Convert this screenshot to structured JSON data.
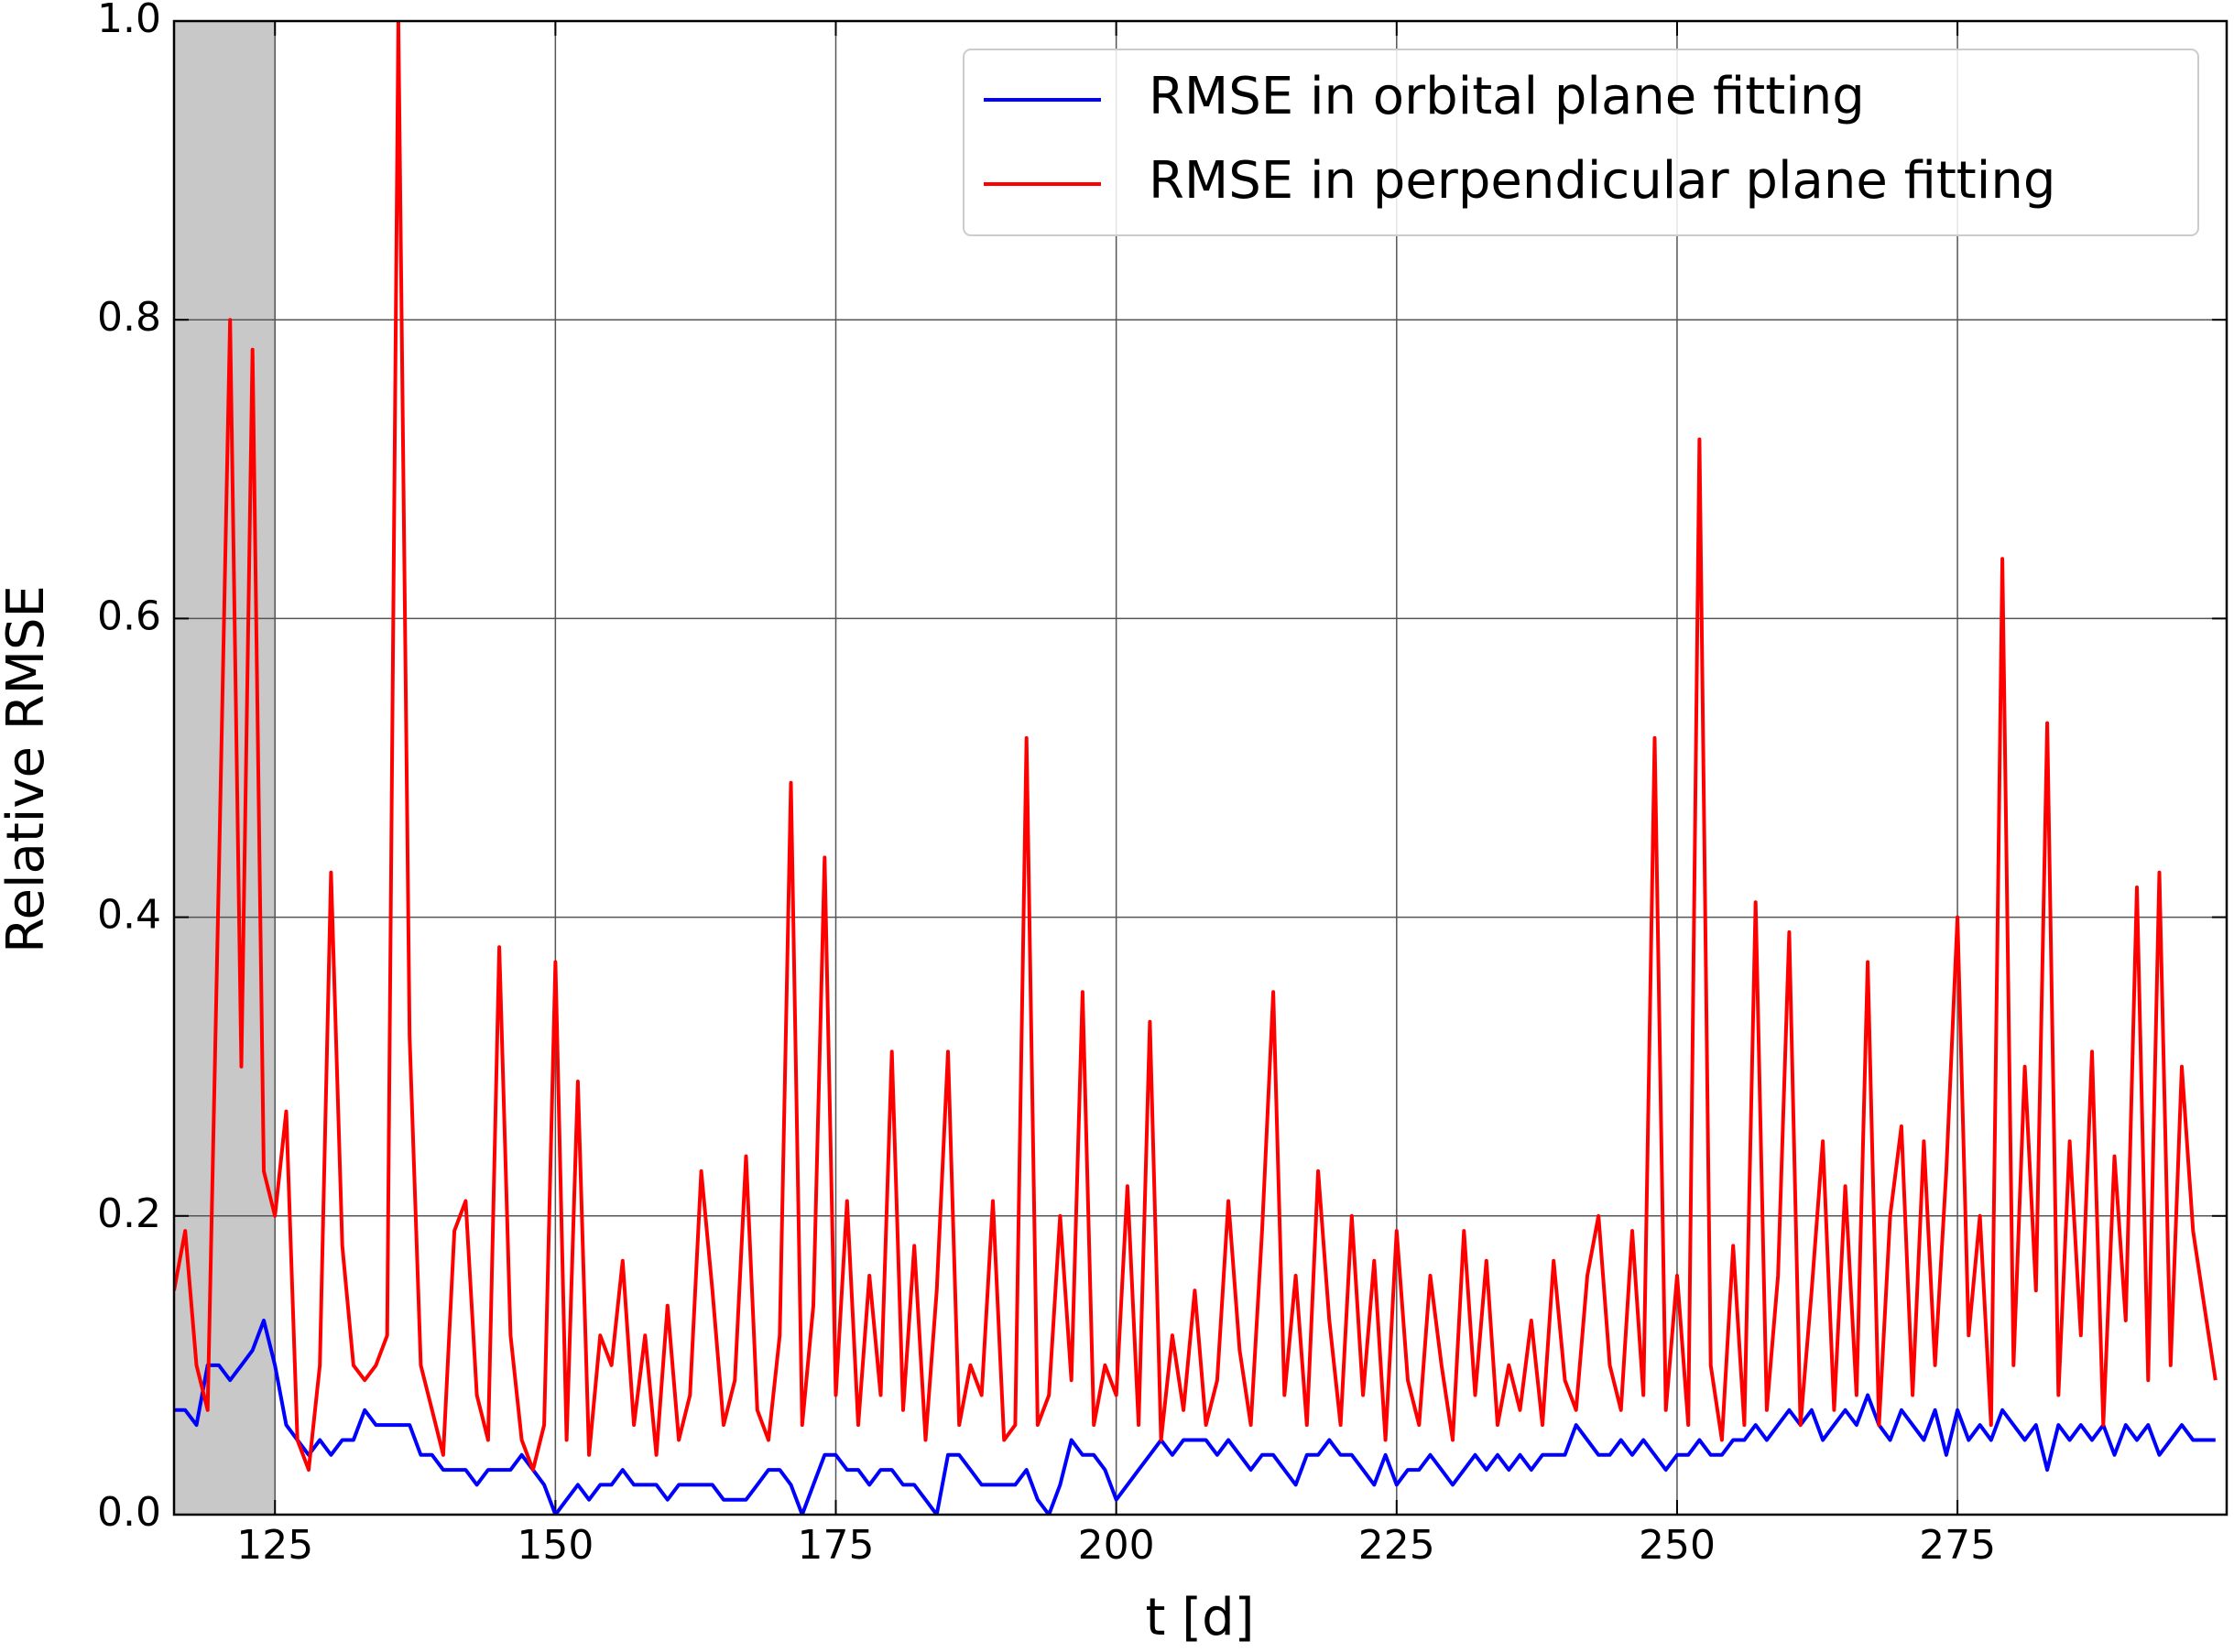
{
  "chart_data": {
    "type": "line",
    "xlabel": "t [d]",
    "ylabel": "Relative RMSE",
    "x": [
      116,
      117,
      118,
      119,
      120,
      121,
      122,
      123,
      124,
      125,
      126,
      127,
      128,
      129,
      130,
      131,
      132,
      133,
      134,
      135,
      136,
      137,
      138,
      139,
      140,
      141,
      142,
      143,
      144,
      145,
      146,
      147,
      148,
      149,
      150,
      151,
      152,
      153,
      154,
      155,
      156,
      157,
      158,
      159,
      160,
      161,
      162,
      163,
      164,
      165,
      166,
      167,
      168,
      169,
      170,
      171,
      172,
      173,
      174,
      175,
      176,
      177,
      178,
      179,
      180,
      181,
      182,
      183,
      184,
      185,
      186,
      187,
      188,
      189,
      190,
      191,
      192,
      193,
      194,
      195,
      196,
      197,
      198,
      199,
      200,
      201,
      202,
      203,
      204,
      205,
      206,
      207,
      208,
      209,
      210,
      211,
      212,
      213,
      214,
      215,
      216,
      217,
      218,
      219,
      220,
      221,
      222,
      223,
      224,
      225,
      226,
      227,
      228,
      229,
      230,
      231,
      232,
      233,
      234,
      235,
      236,
      237,
      238,
      239,
      240,
      241,
      242,
      243,
      244,
      245,
      246,
      247,
      248,
      249,
      250,
      251,
      252,
      253,
      254,
      255,
      256,
      257,
      258,
      259,
      260,
      261,
      262,
      263,
      264,
      265,
      266,
      267,
      268,
      269,
      270,
      271,
      272,
      273,
      274,
      275,
      276,
      277,
      278,
      279,
      280,
      281,
      282,
      283,
      284,
      285,
      286,
      287,
      288,
      289,
      290,
      291,
      292,
      293,
      294,
      295,
      296,
      297,
      298
    ],
    "series": [
      {
        "name": "RMSE in orbital plane fitting",
        "color": "#0000ff",
        "values": [
          0.07,
          0.07,
          0.06,
          0.1,
          0.1,
          0.09,
          0.1,
          0.11,
          0.13,
          0.1,
          0.06,
          0.05,
          0.04,
          0.05,
          0.04,
          0.05,
          0.05,
          0.07,
          0.06,
          0.06,
          0.06,
          0.06,
          0.04,
          0.04,
          0.03,
          0.03,
          0.03,
          0.02,
          0.03,
          0.03,
          0.03,
          0.04,
          0.03,
          0.02,
          0.0,
          0.01,
          0.02,
          0.01,
          0.02,
          0.02,
          0.03,
          0.02,
          0.02,
          0.02,
          0.01,
          0.02,
          0.02,
          0.02,
          0.02,
          0.01,
          0.01,
          0.01,
          0.02,
          0.03,
          0.03,
          0.02,
          0.0,
          0.02,
          0.04,
          0.04,
          0.03,
          0.03,
          0.02,
          0.03,
          0.03,
          0.02,
          0.02,
          0.01,
          0.0,
          0.04,
          0.04,
          0.03,
          0.02,
          0.02,
          0.02,
          0.02,
          0.03,
          0.01,
          0.0,
          0.02,
          0.05,
          0.04,
          0.04,
          0.03,
          0.01,
          0.02,
          0.03,
          0.04,
          0.05,
          0.04,
          0.05,
          0.05,
          0.05,
          0.04,
          0.05,
          0.04,
          0.03,
          0.04,
          0.04,
          0.03,
          0.02,
          0.04,
          0.04,
          0.05,
          0.04,
          0.04,
          0.03,
          0.02,
          0.04,
          0.02,
          0.03,
          0.03,
          0.04,
          0.03,
          0.02,
          0.03,
          0.04,
          0.03,
          0.04,
          0.03,
          0.04,
          0.03,
          0.04,
          0.04,
          0.04,
          0.06,
          0.05,
          0.04,
          0.04,
          0.05,
          0.04,
          0.05,
          0.04,
          0.03,
          0.04,
          0.04,
          0.05,
          0.04,
          0.04,
          0.05,
          0.05,
          0.06,
          0.05,
          0.06,
          0.07,
          0.06,
          0.07,
          0.05,
          0.06,
          0.07,
          0.06,
          0.08,
          0.06,
          0.05,
          0.07,
          0.06,
          0.05,
          0.07,
          0.04,
          0.07,
          0.05,
          0.06,
          0.05,
          0.07,
          0.06,
          0.05,
          0.06,
          0.03,
          0.06,
          0.05,
          0.06,
          0.05,
          0.06,
          0.04,
          0.06,
          0.05,
          0.06,
          0.04,
          0.05,
          0.06,
          0.05,
          0.05,
          0.05
        ]
      },
      {
        "name": "RMSE in perpendicular plane fitting",
        "color": "#ff0000",
        "values": [
          0.15,
          0.19,
          0.1,
          0.07,
          0.43,
          0.8,
          0.3,
          0.78,
          0.23,
          0.2,
          0.27,
          0.05,
          0.03,
          0.1,
          0.43,
          0.18,
          0.1,
          0.09,
          0.1,
          0.12,
          1.0,
          0.32,
          0.1,
          0.07,
          0.04,
          0.19,
          0.21,
          0.08,
          0.05,
          0.38,
          0.12,
          0.05,
          0.03,
          0.06,
          0.37,
          0.05,
          0.29,
          0.04,
          0.12,
          0.1,
          0.17,
          0.06,
          0.12,
          0.04,
          0.14,
          0.05,
          0.08,
          0.23,
          0.15,
          0.06,
          0.09,
          0.24,
          0.07,
          0.05,
          0.12,
          0.49,
          0.06,
          0.14,
          0.44,
          0.08,
          0.21,
          0.06,
          0.16,
          0.08,
          0.31,
          0.07,
          0.18,
          0.05,
          0.15,
          0.31,
          0.06,
          0.1,
          0.08,
          0.21,
          0.05,
          0.06,
          0.52,
          0.06,
          0.08,
          0.2,
          0.09,
          0.35,
          0.06,
          0.1,
          0.08,
          0.22,
          0.06,
          0.33,
          0.05,
          0.12,
          0.07,
          0.15,
          0.06,
          0.09,
          0.21,
          0.11,
          0.06,
          0.19,
          0.35,
          0.08,
          0.16,
          0.06,
          0.23,
          0.13,
          0.06,
          0.2,
          0.08,
          0.17,
          0.05,
          0.19,
          0.09,
          0.06,
          0.16,
          0.1,
          0.05,
          0.19,
          0.08,
          0.17,
          0.06,
          0.1,
          0.07,
          0.13,
          0.06,
          0.17,
          0.09,
          0.07,
          0.16,
          0.2,
          0.1,
          0.07,
          0.19,
          0.08,
          0.52,
          0.07,
          0.16,
          0.06,
          0.72,
          0.1,
          0.05,
          0.18,
          0.06,
          0.41,
          0.07,
          0.16,
          0.39,
          0.06,
          0.15,
          0.25,
          0.07,
          0.22,
          0.08,
          0.37,
          0.06,
          0.2,
          0.26,
          0.08,
          0.25,
          0.1,
          0.23,
          0.4,
          0.12,
          0.2,
          0.06,
          0.64,
          0.1,
          0.3,
          0.15,
          0.53,
          0.08,
          0.25,
          0.12,
          0.31,
          0.06,
          0.24,
          0.13,
          0.42,
          0.09,
          0.43,
          0.1,
          0.3,
          0.19,
          0.14,
          0.09
        ]
      }
    ],
    "xlim": [
      116,
      299
    ],
    "ylim": [
      0,
      1
    ],
    "xticks": [
      125,
      150,
      175,
      200,
      225,
      250,
      275
    ],
    "yticks": [
      {
        "value": 0,
        "label": "0.0"
      },
      {
        "value": 0.2,
        "label": "0.2"
      },
      {
        "value": 0.4,
        "label": "0.4"
      },
      {
        "value": 0.6,
        "label": "0.6"
      },
      {
        "value": 0.8,
        "label": "0.8"
      },
      {
        "value": 1,
        "label": "1.0"
      }
    ],
    "highlight_x": [
      116,
      125
    ],
    "highlight_color": "#c8c8c8",
    "grid": true,
    "legend": "upper right"
  }
}
